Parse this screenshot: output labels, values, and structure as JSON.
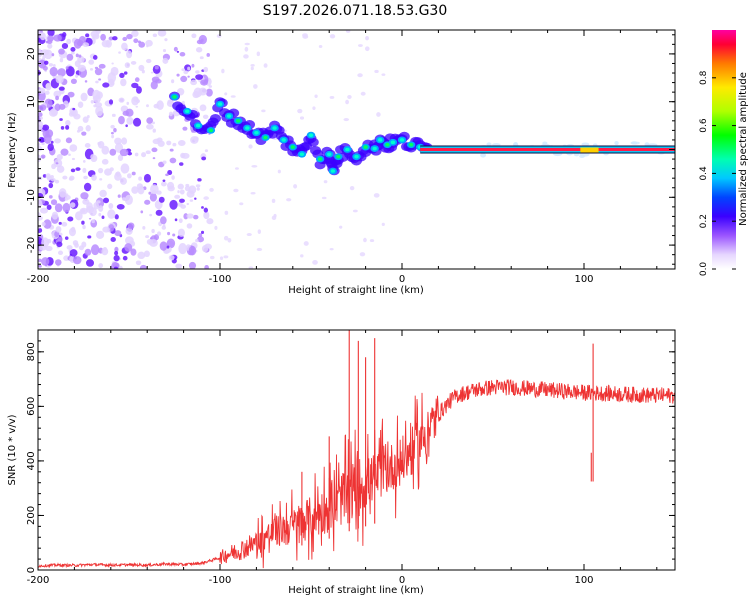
{
  "title": "S197.2026.071.18.53.G30",
  "chart_data": [
    {
      "type": "heatmap",
      "name": "spectrogram",
      "xlabel": "Height of straight line (km)",
      "ylabel": "Frequency (Hz)",
      "xlim": [
        -200,
        150
      ],
      "ylim": [
        -25,
        25
      ],
      "xticks": [
        -200,
        -100,
        0,
        100
      ],
      "yticks": [
        -20,
        -10,
        0,
        10,
        20
      ],
      "ridge": [
        [
          -125,
          11
        ],
        [
          -118,
          8
        ],
        [
          -112,
          5
        ],
        [
          -105,
          4
        ],
        [
          -100,
          9.5
        ],
        [
          -95,
          7
        ],
        [
          -90,
          6
        ],
        [
          -85,
          4.5
        ],
        [
          -80,
          3.5
        ],
        [
          -75,
          2.5
        ],
        [
          -70,
          4.5
        ],
        [
          -65,
          2
        ],
        [
          -60,
          0.5
        ],
        [
          -55,
          -1
        ],
        [
          -50,
          3
        ],
        [
          -45,
          -2
        ],
        [
          -40,
          -1
        ],
        [
          -38,
          -4.5
        ],
        [
          -35,
          -1.5
        ],
        [
          -30,
          0
        ],
        [
          -25,
          -1.5
        ],
        [
          -20,
          0.5
        ],
        [
          -15,
          0.2
        ],
        [
          -12,
          2
        ],
        [
          -8,
          1
        ],
        [
          -5,
          1.5
        ],
        [
          0,
          2
        ],
        [
          5,
          1
        ],
        [
          10,
          0.5
        ],
        [
          15,
          0
        ]
      ],
      "tone": {
        "from": 10,
        "to": 150,
        "frequency": 0
      },
      "colorbar": {
        "label": "Normalized spectral amplitude",
        "ticks": [
          0.0,
          0.2,
          0.4,
          0.6,
          0.8
        ],
        "range": [
          0,
          1
        ]
      }
    },
    {
      "type": "line",
      "name": "snr",
      "xlabel": "Height of straight line (km)",
      "ylabel": "SNR (10 * v/v)",
      "xlim": [
        -200,
        150
      ],
      "ylim": [
        0,
        880
      ],
      "xticks": [
        -200,
        -100,
        0,
        100
      ],
      "yticks": [
        0,
        200,
        400,
        600,
        800
      ],
      "color": "#ee3333",
      "series": [
        {
          "name": "SNR",
          "x": [
            -200,
            -190,
            -180,
            -170,
            -160,
            -150,
            -140,
            -130,
            -120,
            -110,
            -105,
            -100,
            -95,
            -90,
            -85,
            -80,
            -75,
            -70,
            -65,
            -60,
            -55,
            -50,
            -45,
            -40,
            -35,
            -30,
            -25,
            -20,
            -15,
            -10,
            -5,
            0,
            5,
            10,
            15,
            20,
            25,
            30,
            40,
            50,
            60,
            70,
            80,
            90,
            100,
            110,
            120,
            130,
            140,
            150
          ],
          "values": [
            15,
            18,
            17,
            20,
            18,
            19,
            18,
            22,
            20,
            25,
            35,
            45,
            60,
            70,
            85,
            100,
            120,
            140,
            150,
            160,
            180,
            190,
            210,
            230,
            250,
            280,
            300,
            320,
            340,
            360,
            380,
            400,
            430,
            470,
            520,
            570,
            610,
            640,
            660,
            670,
            670,
            665,
            660,
            655,
            650,
            648,
            645,
            642,
            640,
            640
          ]
        }
      ],
      "spikes": [
        {
          "x": -29,
          "value": 880
        },
        {
          "x": -24,
          "value": 840
        },
        {
          "x": -20,
          "value": 780
        },
        {
          "x": -15,
          "value": 850
        },
        {
          "x": -40,
          "value": 490
        },
        {
          "x": -55,
          "value": 360
        },
        {
          "x": 105,
          "value": 830
        },
        {
          "x": 104,
          "value": 430
        }
      ]
    }
  ]
}
